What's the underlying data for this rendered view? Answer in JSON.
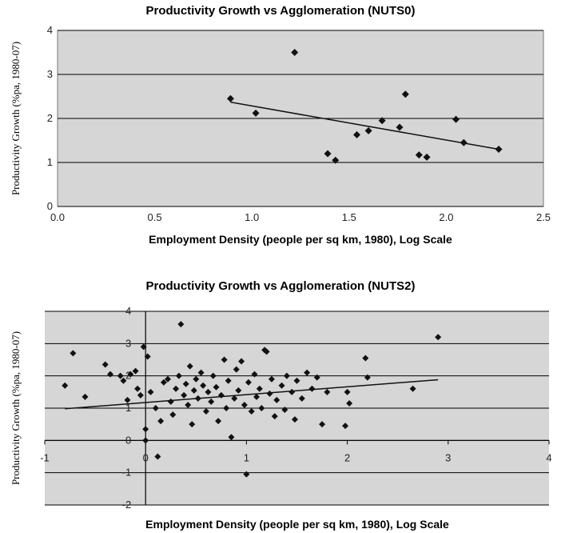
{
  "chart_data": [
    {
      "type": "scatter",
      "title": "Productivity Growth vs Agglomeration (NUTS0)",
      "xlabel": "Employment Density (people per sq km, 1980), Log Scale",
      "ylabel": "Productivity Growth (%pa, 1980-07)",
      "xlim": [
        0,
        2.5
      ],
      "ylim": [
        0,
        4
      ],
      "x_ticks": [
        "0.0",
        "0.5",
        "1.0",
        "1.5",
        "2.0",
        "2.5"
      ],
      "y_ticks": [
        "0",
        "1",
        "2",
        "3",
        "4"
      ],
      "grid": "horizontal",
      "background": "#d6d6d6",
      "marker_color": "#111111",
      "points": [
        {
          "x": 0.89,
          "y": 2.45
        },
        {
          "x": 1.02,
          "y": 2.12
        },
        {
          "x": 1.22,
          "y": 3.5
        },
        {
          "x": 1.39,
          "y": 1.2
        },
        {
          "x": 1.43,
          "y": 1.05
        },
        {
          "x": 1.54,
          "y": 1.63
        },
        {
          "x": 1.6,
          "y": 1.72
        },
        {
          "x": 1.67,
          "y": 1.95
        },
        {
          "x": 1.76,
          "y": 1.8
        },
        {
          "x": 1.79,
          "y": 2.55
        },
        {
          "x": 1.86,
          "y": 1.17
        },
        {
          "x": 1.9,
          "y": 1.12
        },
        {
          "x": 2.05,
          "y": 1.98
        },
        {
          "x": 2.09,
          "y": 1.45
        },
        {
          "x": 2.27,
          "y": 1.3
        }
      ],
      "trendline": [
        {
          "x": 0.89,
          "y": 2.37
        },
        {
          "x": 2.27,
          "y": 1.3
        }
      ]
    },
    {
      "type": "scatter",
      "title": "Productivity Growth vs Agglomeration (NUTS2)",
      "xlabel": "Employment Density (people per sq km, 1980), Log Scale",
      "ylabel": "Productivity Growth (%pa, 1980-07)",
      "xlim": [
        -1,
        4
      ],
      "ylim": [
        -2,
        4
      ],
      "x_ticks": [
        "-1",
        "0",
        "1",
        "2",
        "3",
        "4"
      ],
      "y_ticks": [
        "-2",
        "-1",
        "0",
        "1",
        "2",
        "3",
        "4"
      ],
      "grid": "horizontal",
      "background": "#d6d6d6",
      "marker_color": "#111111",
      "points": [
        {
          "x": -0.8,
          "y": 1.7
        },
        {
          "x": -0.72,
          "y": 2.7
        },
        {
          "x": -0.6,
          "y": 1.35
        },
        {
          "x": -0.4,
          "y": 2.35
        },
        {
          "x": -0.35,
          "y": 2.05
        },
        {
          "x": -0.25,
          "y": 2.0
        },
        {
          "x": -0.22,
          "y": 1.85
        },
        {
          "x": -0.18,
          "y": 1.25
        },
        {
          "x": -0.15,
          "y": 2.05
        },
        {
          "x": -0.1,
          "y": 2.15
        },
        {
          "x": -0.08,
          "y": 1.6
        },
        {
          "x": -0.05,
          "y": 1.4
        },
        {
          "x": -0.02,
          "y": 2.9
        },
        {
          "x": 0.02,
          "y": 2.6
        },
        {
          "x": 0.0,
          "y": 0.35
        },
        {
          "x": 0.0,
          "y": 0.0
        },
        {
          "x": 0.05,
          "y": 1.5
        },
        {
          "x": 0.1,
          "y": 1.0
        },
        {
          "x": 0.12,
          "y": -0.5
        },
        {
          "x": 0.15,
          "y": 0.6
        },
        {
          "x": 0.18,
          "y": 1.8
        },
        {
          "x": 0.22,
          "y": 1.9
        },
        {
          "x": 0.25,
          "y": 1.2
        },
        {
          "x": 0.27,
          "y": 0.8
        },
        {
          "x": 0.3,
          "y": 1.6
        },
        {
          "x": 0.33,
          "y": 2.0
        },
        {
          "x": 0.35,
          "y": 3.6
        },
        {
          "x": 0.38,
          "y": 1.4
        },
        {
          "x": 0.4,
          "y": 1.75
        },
        {
          "x": 0.42,
          "y": 1.1
        },
        {
          "x": 0.44,
          "y": 2.3
        },
        {
          "x": 0.46,
          "y": 0.5
        },
        {
          "x": 0.48,
          "y": 1.55
        },
        {
          "x": 0.5,
          "y": 1.9
        },
        {
          "x": 0.52,
          "y": 1.3
        },
        {
          "x": 0.55,
          "y": 2.1
        },
        {
          "x": 0.57,
          "y": 1.7
        },
        {
          "x": 0.6,
          "y": 0.9
        },
        {
          "x": 0.62,
          "y": 1.5
        },
        {
          "x": 0.65,
          "y": 1.2
        },
        {
          "x": 0.67,
          "y": 2.0
        },
        {
          "x": 0.7,
          "y": 1.65
        },
        {
          "x": 0.72,
          "y": 0.6
        },
        {
          "x": 0.75,
          "y": 1.4
        },
        {
          "x": 0.78,
          "y": 2.5
        },
        {
          "x": 0.8,
          "y": 1.0
        },
        {
          "x": 0.82,
          "y": 1.85
        },
        {
          "x": 0.85,
          "y": 0.1
        },
        {
          "x": 0.88,
          "y": 1.3
        },
        {
          "x": 0.9,
          "y": 2.2
        },
        {
          "x": 0.92,
          "y": 1.55
        },
        {
          "x": 0.95,
          "y": 2.45
        },
        {
          "x": 0.98,
          "y": 1.1
        },
        {
          "x": 1.0,
          "y": -1.05
        },
        {
          "x": 1.02,
          "y": 1.8
        },
        {
          "x": 1.05,
          "y": 0.9
        },
        {
          "x": 1.08,
          "y": 2.05
        },
        {
          "x": 1.1,
          "y": 1.35
        },
        {
          "x": 1.13,
          "y": 1.6
        },
        {
          "x": 1.15,
          "y": 1.0
        },
        {
          "x": 1.18,
          "y": 2.8
        },
        {
          "x": 1.2,
          "y": 2.75
        },
        {
          "x": 1.23,
          "y": 1.45
        },
        {
          "x": 1.25,
          "y": 1.9
        },
        {
          "x": 1.28,
          "y": 0.75
        },
        {
          "x": 1.3,
          "y": 1.25
        },
        {
          "x": 1.35,
          "y": 1.7
        },
        {
          "x": 1.38,
          "y": 0.95
        },
        {
          "x": 1.4,
          "y": 2.0
        },
        {
          "x": 1.45,
          "y": 1.5
        },
        {
          "x": 1.48,
          "y": 0.65
        },
        {
          "x": 1.5,
          "y": 1.85
        },
        {
          "x": 1.55,
          "y": 1.3
        },
        {
          "x": 1.6,
          "y": 2.1
        },
        {
          "x": 1.65,
          "y": 1.6
        },
        {
          "x": 1.7,
          "y": 1.95
        },
        {
          "x": 1.75,
          "y": 0.5
        },
        {
          "x": 1.8,
          "y": 1.5
        },
        {
          "x": 1.98,
          "y": 0.45
        },
        {
          "x": 2.0,
          "y": 1.5
        },
        {
          "x": 2.02,
          "y": 1.15
        },
        {
          "x": 2.18,
          "y": 2.55
        },
        {
          "x": 2.2,
          "y": 1.95
        },
        {
          "x": 2.65,
          "y": 1.6
        },
        {
          "x": 2.9,
          "y": 3.2
        }
      ],
      "trendline": [
        {
          "x": -0.8,
          "y": 0.98
        },
        {
          "x": 2.9,
          "y": 1.88
        }
      ]
    }
  ]
}
